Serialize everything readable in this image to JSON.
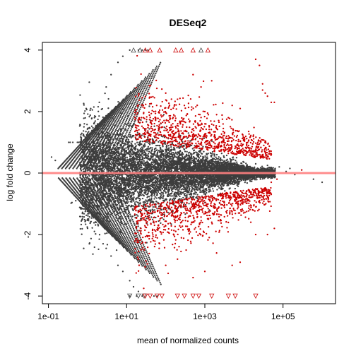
{
  "chart_data": {
    "type": "scatter",
    "title": "DESeq2",
    "xlabel": "mean of normalized counts",
    "ylabel": "log fold change",
    "x_scale": "log10",
    "xlim": [
      0.07,
      2200000
    ],
    "ylim": [
      -4.25,
      4.25
    ],
    "x_ticks": [
      {
        "value": 0.1,
        "label": "1e-01"
      },
      {
        "value": 10,
        "label": "1e+01"
      },
      {
        "value": 1000,
        "label": "1e+03"
      },
      {
        "value": 100000,
        "label": "1e+05"
      }
    ],
    "y_ticks": [
      {
        "value": -4,
        "label": "-4"
      },
      {
        "value": -2,
        "label": "-2"
      },
      {
        "value": 0,
        "label": "0"
      },
      {
        "value": 2,
        "label": "2"
      },
      {
        "value": 4,
        "label": "4"
      }
    ],
    "reference_line": {
      "y": 0,
      "color": "#ff7f7f"
    },
    "grid": false,
    "colors": {
      "not_significant": "#3d3d3d",
      "significant": "#cc0000",
      "background": "#ffffff",
      "axis": "#000000"
    },
    "series": [
      {
        "marker": "dot",
        "color": "not_significant",
        "points": [
          [
            0.12,
            0.52
          ],
          [
            0.15,
            0.41
          ],
          [
            0.33,
            1.0
          ],
          [
            0.36,
            1.0
          ],
          [
            0.42,
            1.0
          ],
          [
            0.55,
            1.0
          ],
          [
            0.6,
            1.0
          ],
          [
            0.66,
            1.0
          ],
          [
            0.9,
            0.98
          ],
          [
            0.95,
            0.95
          ],
          [
            0.38,
            -0.98
          ],
          [
            0.4,
            -0.96
          ],
          [
            0.5,
            -0.9
          ],
          [
            0.9,
            -1.2
          ],
          [
            1.0,
            -1.5
          ],
          [
            1.5,
            -1.9
          ],
          [
            2.0,
            -2.15
          ],
          [
            2.5,
            -2.3
          ],
          [
            3.0,
            -2.45
          ],
          [
            4.0,
            -2.7
          ],
          [
            6.0,
            -3.0
          ],
          [
            8.0,
            -3.2
          ],
          [
            12.0,
            -3.5
          ],
          [
            15.0,
            -3.7
          ],
          [
            20.0,
            -3.85
          ],
          [
            1.5,
            1.8
          ],
          [
            2.0,
            2.3
          ],
          [
            3.0,
            2.8
          ],
          [
            4.0,
            3.2
          ],
          [
            6.0,
            3.6
          ],
          [
            8.0,
            3.8
          ],
          [
            12.0,
            4.0
          ],
          [
            20.0,
            4.0
          ],
          [
            25.0,
            4.0
          ],
          [
            30.0,
            4.0
          ],
          [
            35.0,
            4.0
          ],
          [
            12.0,
            -4.0
          ],
          [
            18.0,
            -4.0
          ],
          [
            25.0,
            -4.0
          ],
          [
            50.0,
            -4.0
          ],
          [
            60.0,
            -4.0
          ],
          [
            10000,
            0.35
          ],
          [
            20000,
            0.3
          ],
          [
            40000,
            0.25
          ],
          [
            80000,
            0.2
          ],
          [
            150000,
            0.15
          ],
          [
            300000,
            0.1
          ],
          [
            600000,
            -0.2
          ],
          [
            1000000,
            -0.3
          ],
          [
            200000,
            -0.05
          ],
          [
            120000,
            0.05
          ]
        ]
      },
      {
        "marker": "dot",
        "color": "significant",
        "points": [
          [
            20000,
            3.7
          ],
          [
            25000,
            3.5
          ],
          [
            30000,
            2.7
          ],
          [
            35000,
            2.6
          ],
          [
            40000,
            2.5
          ],
          [
            50000,
            2.3
          ],
          [
            60000,
            2.3
          ],
          [
            30000,
            2.9
          ],
          [
            500,
            3.2
          ],
          [
            1500,
            3.0
          ],
          [
            5000,
            2.2
          ],
          [
            8000,
            2.1
          ],
          [
            100,
            2.6
          ],
          [
            200,
            2.4
          ],
          [
            300,
            2.2
          ],
          [
            800,
            2.8
          ],
          [
            1000,
            2.0
          ],
          [
            2000,
            1.9
          ],
          [
            4000,
            1.8
          ],
          [
            50000,
            -0.3
          ],
          [
            70000,
            -0.2
          ],
          [
            300000,
            0.1
          ],
          [
            500,
            -3.4
          ],
          [
            1000,
            -3.2
          ],
          [
            5000,
            -3.0
          ],
          [
            8000,
            -2.9
          ],
          [
            100,
            -3.0
          ],
          [
            200,
            -2.8
          ],
          [
            2000,
            -2.6
          ],
          [
            20000,
            -2.0
          ],
          [
            40000,
            -2.0
          ],
          [
            60000,
            -1.8
          ],
          [
            15000,
            -1.6
          ]
        ]
      },
      {
        "marker": "triangle-up",
        "color": "not_significant",
        "points": [
          [
            15,
            4.0
          ],
          [
            22,
            4.0
          ],
          [
            800,
            4.0
          ]
        ]
      },
      {
        "marker": "triangle-up",
        "color": "significant",
        "points": [
          [
            30,
            4.0
          ],
          [
            40,
            4.0
          ],
          [
            70,
            4.0
          ],
          [
            180,
            4.0
          ],
          [
            250,
            4.0
          ],
          [
            500,
            4.0
          ],
          [
            1200,
            4.0
          ]
        ]
      },
      {
        "marker": "triangle-down",
        "color": "not_significant",
        "points": [
          [
            12,
            -4.0
          ],
          [
            20,
            -4.0
          ],
          [
            28,
            -4.0
          ]
        ]
      },
      {
        "marker": "triangle-down",
        "color": "significant",
        "points": [
          [
            30,
            -4.0
          ],
          [
            40,
            -4.0
          ],
          [
            60,
            -4.0
          ],
          [
            80,
            -4.0
          ],
          [
            200,
            -4.0
          ],
          [
            300,
            -4.0
          ],
          [
            500,
            -4.0
          ],
          [
            700,
            -4.0
          ],
          [
            1500,
            -4.0
          ],
          [
            4000,
            -4.0
          ],
          [
            6000,
            -4.0
          ],
          [
            20000,
            -4.0
          ]
        ]
      }
    ],
    "density_clouds": [
      {
        "color": "not_significant",
        "count": 9000,
        "x_log_range": [
          -0.2,
          4.8
        ],
        "description_bins": "dense central cloud"
      },
      {
        "color": "significant",
        "count": 1800,
        "x_log_range": [
          1.2,
          4.7
        ]
      }
    ]
  }
}
